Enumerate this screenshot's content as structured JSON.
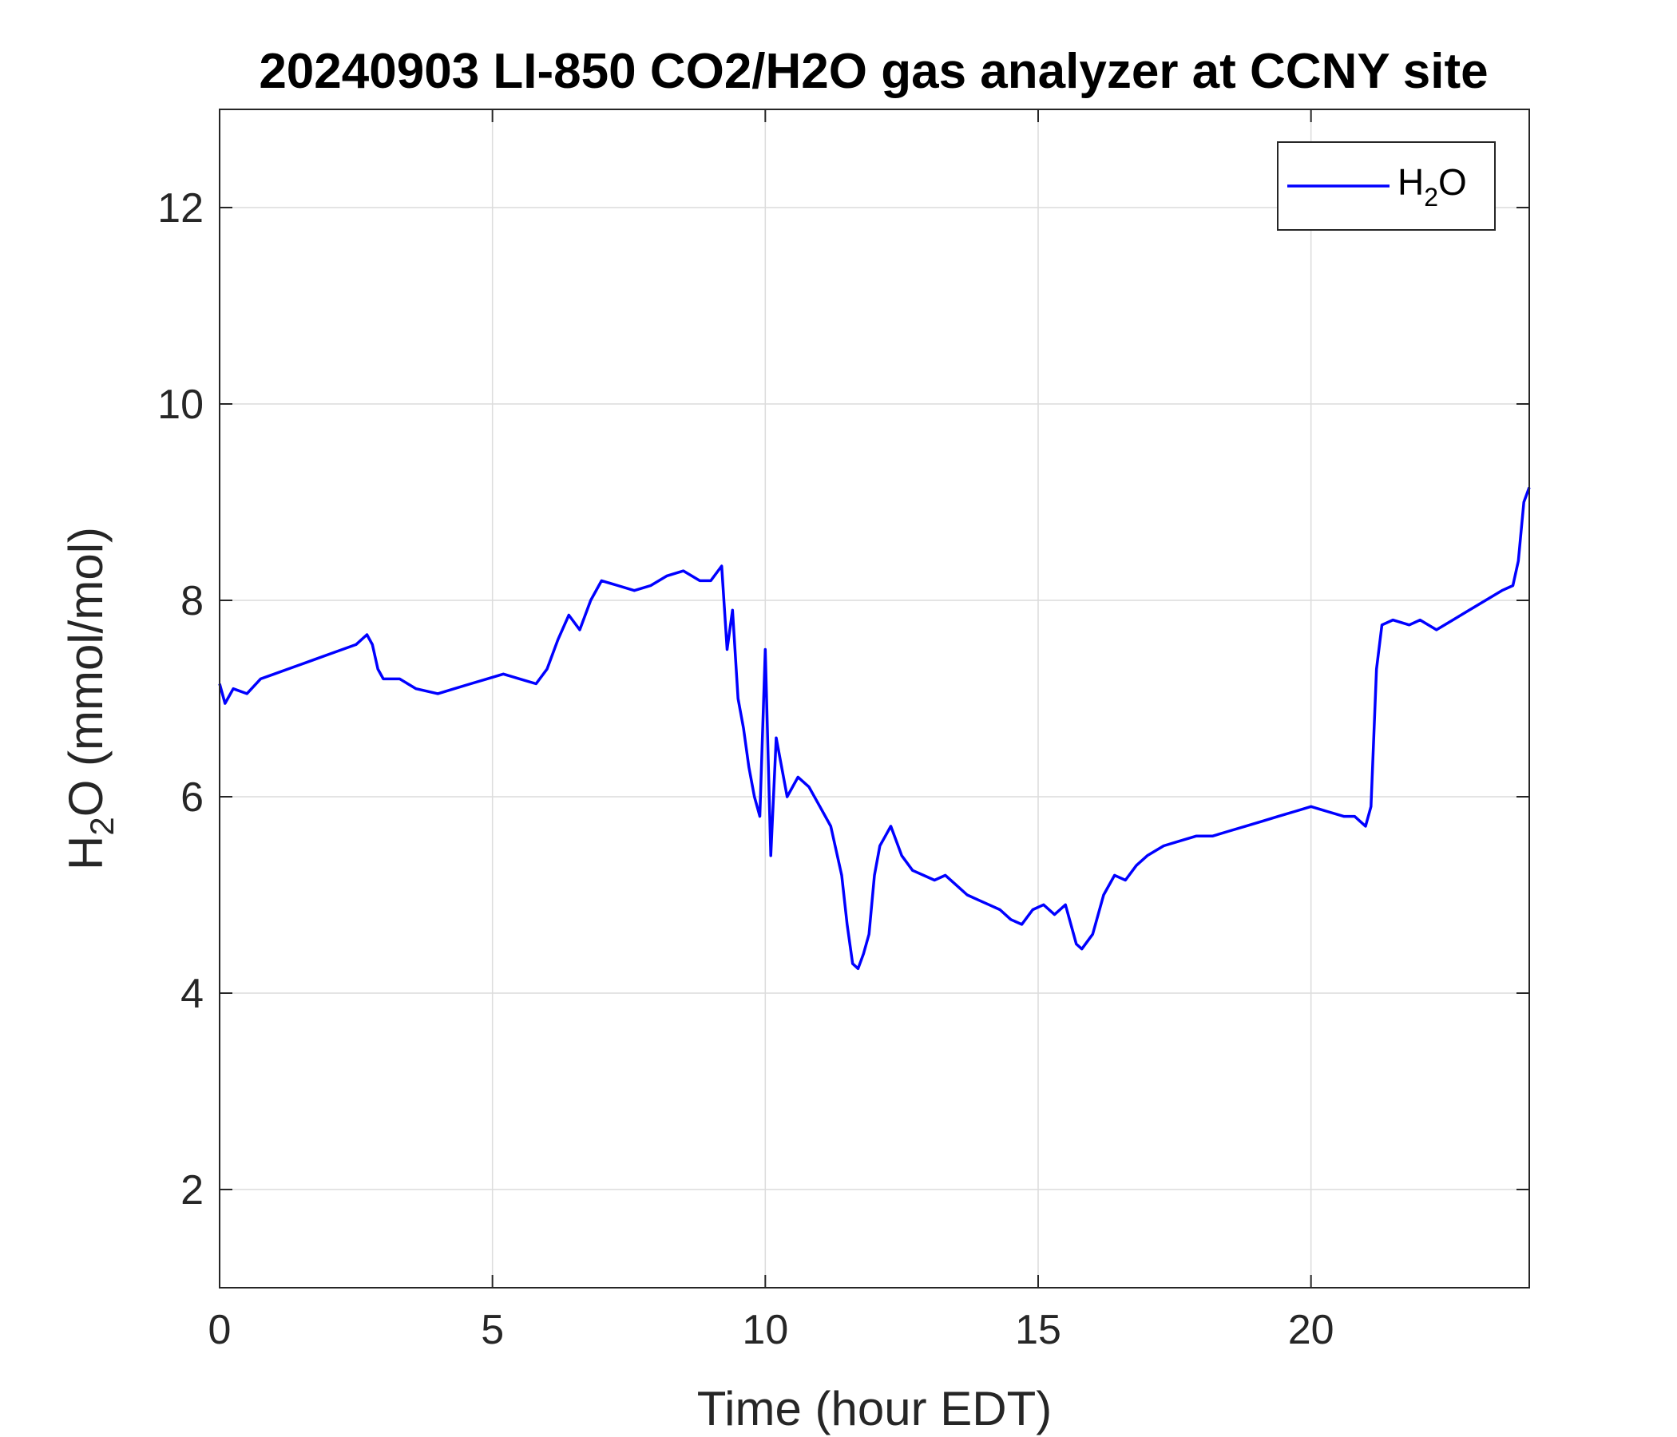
{
  "chart_data": {
    "type": "line",
    "title": "20240903 LI-850 CO2/H2O gas analyzer at CCNY site",
    "xlabel": "Time (hour EDT)",
    "ylabel_parts": [
      "H",
      "2",
      "O (mmol/mol)"
    ],
    "xlim": [
      0,
      24
    ],
    "ylim": [
      1,
      13
    ],
    "xticks": [
      0,
      5,
      10,
      15,
      20
    ],
    "yticks": [
      2,
      4,
      6,
      8,
      10,
      12
    ],
    "grid": true,
    "legend_placement": "top-right",
    "legend_label_parts": [
      "H",
      "2",
      "O"
    ],
    "series": [
      {
        "name": "H2O",
        "color": "#0000ff",
        "x": [
          0.0,
          0.1,
          0.25,
          0.5,
          0.75,
          1.0,
          1.25,
          1.5,
          1.75,
          2.0,
          2.25,
          2.5,
          2.7,
          2.8,
          2.9,
          3.0,
          3.3,
          3.6,
          4.0,
          4.3,
          4.6,
          4.9,
          5.2,
          5.5,
          5.8,
          6.0,
          6.2,
          6.4,
          6.6,
          6.8,
          7.0,
          7.3,
          7.6,
          7.9,
          8.2,
          8.5,
          8.8,
          9.0,
          9.2,
          9.3,
          9.4,
          9.5,
          9.6,
          9.7,
          9.8,
          9.9,
          10.0,
          10.1,
          10.2,
          10.4,
          10.6,
          10.8,
          11.0,
          11.2,
          11.4,
          11.5,
          11.6,
          11.7,
          11.8,
          11.9,
          12.0,
          12.1,
          12.2,
          12.3,
          12.5,
          12.7,
          12.9,
          13.1,
          13.3,
          13.5,
          13.7,
          13.9,
          14.1,
          14.3,
          14.5,
          14.7,
          14.9,
          15.1,
          15.3,
          15.5,
          15.6,
          15.7,
          15.8,
          16.0,
          16.2,
          16.4,
          16.6,
          16.8,
          17.0,
          17.3,
          17.6,
          17.9,
          18.2,
          18.5,
          18.8,
          19.1,
          19.4,
          19.7,
          20.0,
          20.3,
          20.6,
          20.8,
          20.9,
          21.0,
          21.1,
          21.2,
          21.3,
          21.5,
          21.8,
          22.0,
          22.3,
          22.6,
          22.9,
          23.2,
          23.5,
          23.7,
          23.8,
          23.9,
          24.0
        ],
        "y": [
          7.15,
          6.95,
          7.1,
          7.05,
          7.2,
          7.25,
          7.3,
          7.35,
          7.4,
          7.45,
          7.5,
          7.55,
          7.65,
          7.55,
          7.3,
          7.2,
          7.2,
          7.1,
          7.05,
          7.1,
          7.15,
          7.2,
          7.25,
          7.2,
          7.15,
          7.3,
          7.6,
          7.85,
          7.7,
          8.0,
          8.2,
          8.15,
          8.1,
          8.15,
          8.25,
          8.3,
          8.2,
          8.2,
          8.35,
          7.5,
          7.9,
          7.0,
          6.7,
          6.3,
          6.0,
          5.8,
          7.5,
          5.4,
          6.6,
          6.0,
          6.2,
          6.1,
          5.9,
          5.7,
          5.2,
          4.7,
          4.3,
          4.25,
          4.4,
          4.6,
          5.2,
          5.5,
          5.6,
          5.7,
          5.4,
          5.25,
          5.2,
          5.15,
          5.2,
          5.1,
          5.0,
          4.95,
          4.9,
          4.85,
          4.75,
          4.7,
          4.85,
          4.9,
          4.8,
          4.9,
          4.7,
          4.5,
          4.45,
          4.6,
          5.0,
          5.2,
          5.15,
          5.3,
          5.4,
          5.5,
          5.55,
          5.6,
          5.6,
          5.65,
          5.7,
          5.75,
          5.8,
          5.85,
          5.9,
          5.85,
          5.8,
          5.8,
          5.75,
          5.7,
          5.9,
          7.3,
          7.75,
          7.8,
          7.75,
          7.8,
          7.7,
          7.8,
          7.9,
          8.0,
          8.1,
          8.15,
          8.4,
          9.0,
          9.15
        ]
      }
    ]
  }
}
